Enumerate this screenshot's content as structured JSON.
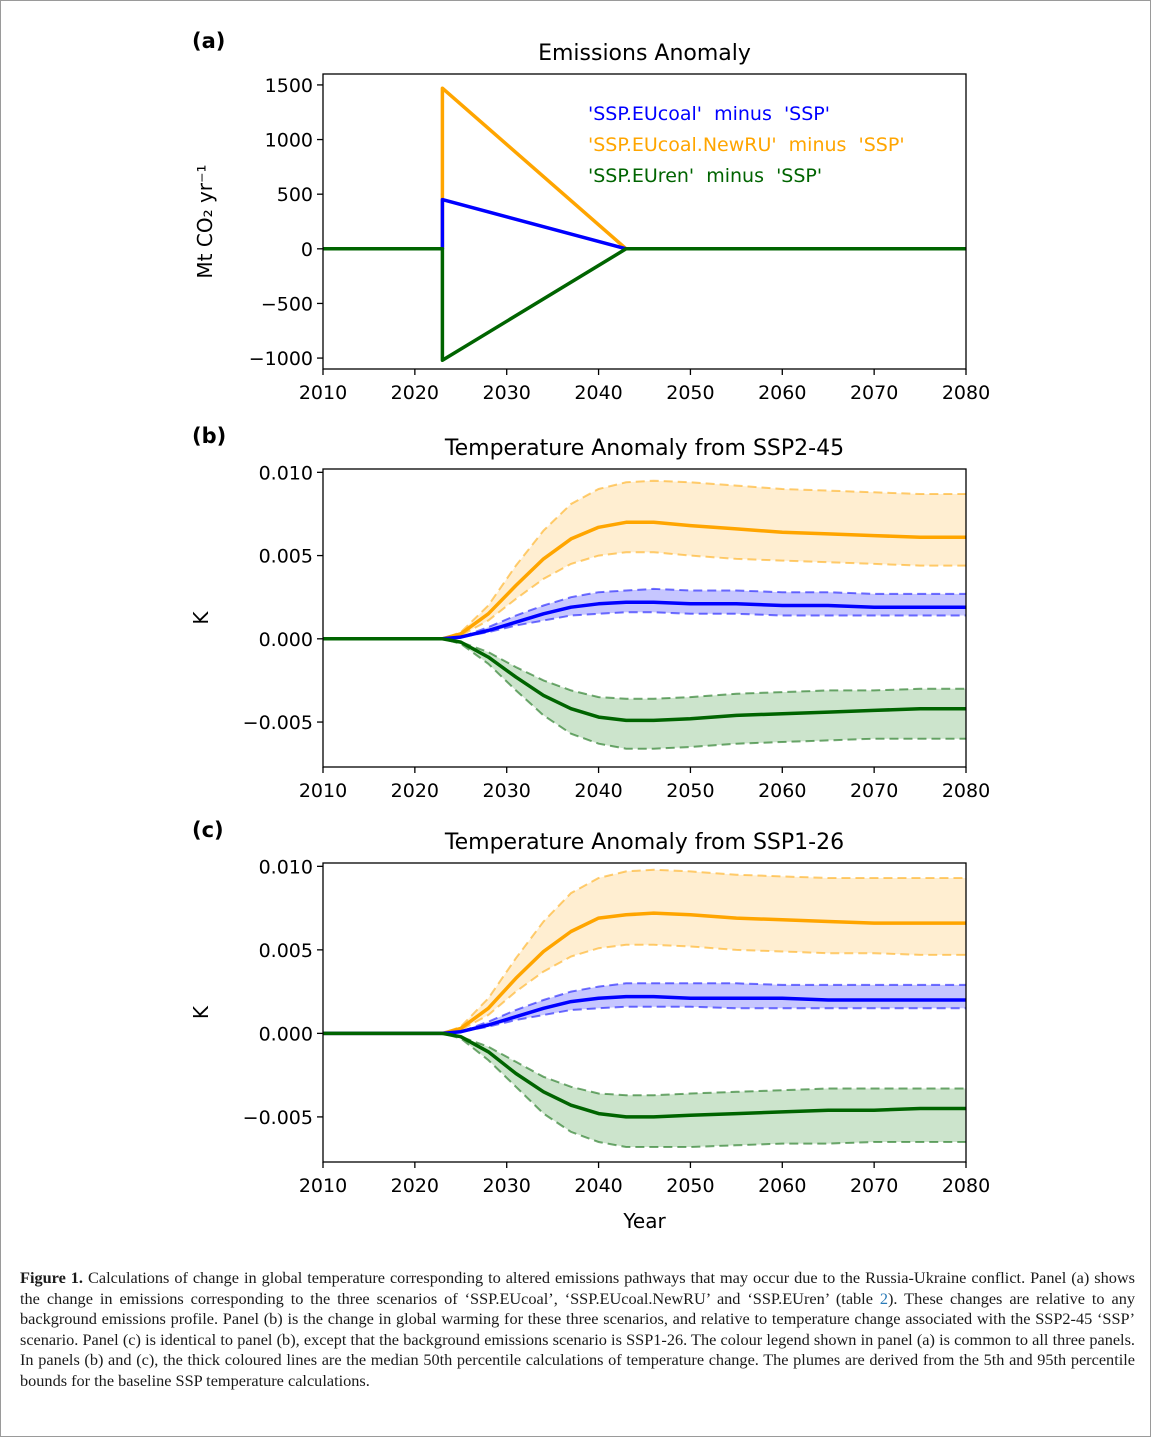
{
  "colors": {
    "eucoal": "#0000ff",
    "newru": "#ffa500",
    "euren": "#006400",
    "eucoal_fill": "#8080ff",
    "newru_fill": "#ffd99a",
    "euren_fill": "#8ec38e"
  },
  "chart_data": [
    {
      "type": "line",
      "panel_label": "(a)",
      "title": "Emissions Anomaly",
      "xlabel": "",
      "ylabel": "Mt CO₂ yr⁻¹",
      "xlim": [
        2010,
        2080
      ],
      "ylim": [
        -1100,
        1600
      ],
      "xticks": [
        2010,
        2020,
        2030,
        2040,
        2050,
        2060,
        2070,
        2080
      ],
      "yticks": [
        -1000,
        -500,
        0,
        500,
        1000,
        1500
      ],
      "ytick_labels": [
        "−1000",
        "−500",
        "0",
        "500",
        "1000",
        "1500"
      ],
      "legend": {
        "placement": "top-right",
        "entries": [
          {
            "key": "eucoal",
            "label": "'SSP.EUcoal'  minus  'SSP'"
          },
          {
            "key": "newru",
            "label": "'SSP.EUcoal.NewRU'  minus  'SSP'"
          },
          {
            "key": "euren",
            "label": "'SSP.EUren'  minus  'SSP'"
          }
        ]
      },
      "series": [
        {
          "key": "newru",
          "x": [
            2010,
            2023,
            2023,
            2043,
            2080
          ],
          "y": [
            0,
            0,
            1470,
            0,
            0
          ]
        },
        {
          "key": "eucoal",
          "x": [
            2010,
            2023,
            2023,
            2043,
            2080
          ],
          "y": [
            0,
            0,
            450,
            0,
            0
          ]
        },
        {
          "key": "euren",
          "x": [
            2010,
            2023,
            2023,
            2043,
            2080
          ],
          "y": [
            0,
            0,
            -1020,
            0,
            0
          ]
        }
      ]
    },
    {
      "type": "line",
      "panel_label": "(b)",
      "title": "Temperature Anomaly from SSP2-45",
      "xlabel": "",
      "ylabel": "K",
      "xlim": [
        2010,
        2080
      ],
      "ylim": [
        -0.0077,
        0.0102
      ],
      "xticks": [
        2010,
        2020,
        2030,
        2040,
        2050,
        2060,
        2070,
        2080
      ],
      "yticks": [
        -0.005,
        0.0,
        0.005,
        0.01
      ],
      "ytick_labels": [
        "−0.005",
        "0.000",
        "0.005",
        "0.010"
      ],
      "series": [
        {
          "key": "newru",
          "x": [
            2010,
            2023,
            2025,
            2028,
            2031,
            2034,
            2037,
            2040,
            2043,
            2046,
            2050,
            2055,
            2060,
            2065,
            2070,
            2075,
            2080
          ],
          "median": [
            0,
            0,
            0.0003,
            0.0015,
            0.0032,
            0.0048,
            0.006,
            0.0067,
            0.007,
            0.007,
            0.0068,
            0.0066,
            0.0064,
            0.0063,
            0.0062,
            0.0061,
            0.0061
          ],
          "low": [
            0,
            0,
            0.0002,
            0.0011,
            0.0024,
            0.0036,
            0.0045,
            0.005,
            0.0052,
            0.0052,
            0.005,
            0.0048,
            0.0047,
            0.0046,
            0.0045,
            0.0044,
            0.0044
          ],
          "high": [
            0,
            0,
            0.0004,
            0.002,
            0.0044,
            0.0065,
            0.0081,
            0.009,
            0.0094,
            0.0095,
            0.0094,
            0.0092,
            0.009,
            0.0089,
            0.0088,
            0.0087,
            0.0087
          ]
        },
        {
          "key": "eucoal",
          "x": [
            2010,
            2023,
            2025,
            2028,
            2031,
            2034,
            2037,
            2040,
            2043,
            2046,
            2050,
            2055,
            2060,
            2065,
            2070,
            2075,
            2080
          ],
          "median": [
            0,
            0,
            0.0001,
            0.0005,
            0.001,
            0.0015,
            0.0019,
            0.0021,
            0.0022,
            0.0022,
            0.0021,
            0.0021,
            0.002,
            0.002,
            0.0019,
            0.0019,
            0.0019
          ],
          "low": [
            0,
            0,
            0.0001,
            0.0004,
            0.0008,
            0.0011,
            0.0014,
            0.0015,
            0.0016,
            0.0016,
            0.0015,
            0.0015,
            0.0014,
            0.0014,
            0.0014,
            0.0014,
            0.0014
          ],
          "high": [
            0,
            0,
            0.0001,
            0.0007,
            0.0014,
            0.002,
            0.0025,
            0.0028,
            0.0029,
            0.003,
            0.0029,
            0.0029,
            0.0028,
            0.0028,
            0.0027,
            0.0027,
            0.0027
          ]
        },
        {
          "key": "euren",
          "x": [
            2010,
            2023,
            2025,
            2028,
            2031,
            2034,
            2037,
            2040,
            2043,
            2046,
            2050,
            2055,
            2060,
            2065,
            2070,
            2075,
            2080
          ],
          "median": [
            0,
            0,
            -0.0002,
            -0.0011,
            -0.0023,
            -0.0034,
            -0.0042,
            -0.0047,
            -0.0049,
            -0.0049,
            -0.0048,
            -0.0046,
            -0.0045,
            -0.0044,
            -0.0043,
            -0.0042,
            -0.0042
          ],
          "low": [
            0,
            0,
            -0.0003,
            -0.0015,
            -0.0031,
            -0.0046,
            -0.0057,
            -0.0063,
            -0.0066,
            -0.0066,
            -0.0065,
            -0.0063,
            -0.0062,
            -0.0061,
            -0.006,
            -0.006,
            -0.006
          ],
          "high": [
            0,
            0,
            -0.0002,
            -0.0008,
            -0.0017,
            -0.0025,
            -0.0031,
            -0.0035,
            -0.0036,
            -0.0036,
            -0.0035,
            -0.0033,
            -0.0032,
            -0.0031,
            -0.0031,
            -0.003,
            -0.003
          ]
        }
      ]
    },
    {
      "type": "line",
      "panel_label": "(c)",
      "title": "Temperature Anomaly from SSP1-26",
      "xlabel": "Year",
      "ylabel": "K",
      "xlim": [
        2010,
        2080
      ],
      "ylim": [
        -0.0077,
        0.0102
      ],
      "xticks": [
        2010,
        2020,
        2030,
        2040,
        2050,
        2060,
        2070,
        2080
      ],
      "yticks": [
        -0.005,
        0.0,
        0.005,
        0.01
      ],
      "ytick_labels": [
        "−0.005",
        "0.000",
        "0.005",
        "0.010"
      ],
      "series": [
        {
          "key": "newru",
          "x": [
            2010,
            2023,
            2025,
            2028,
            2031,
            2034,
            2037,
            2040,
            2043,
            2046,
            2050,
            2055,
            2060,
            2065,
            2070,
            2075,
            2080
          ],
          "median": [
            0,
            0,
            0.0003,
            0.0015,
            0.0033,
            0.0049,
            0.0061,
            0.0069,
            0.0071,
            0.0072,
            0.0071,
            0.0069,
            0.0068,
            0.0067,
            0.0066,
            0.0066,
            0.0066
          ],
          "low": [
            0,
            0,
            0.0002,
            0.0011,
            0.0025,
            0.0037,
            0.0046,
            0.0051,
            0.0053,
            0.0053,
            0.0052,
            0.005,
            0.0049,
            0.0048,
            0.0048,
            0.0047,
            0.0047
          ],
          "high": [
            0,
            0,
            0.0004,
            0.0021,
            0.0045,
            0.0067,
            0.0084,
            0.0093,
            0.0097,
            0.0098,
            0.0097,
            0.0095,
            0.0094,
            0.0093,
            0.0093,
            0.0093,
            0.0093
          ]
        },
        {
          "key": "eucoal",
          "x": [
            2010,
            2023,
            2025,
            2028,
            2031,
            2034,
            2037,
            2040,
            2043,
            2046,
            2050,
            2055,
            2060,
            2065,
            2070,
            2075,
            2080
          ],
          "median": [
            0,
            0,
            0.0001,
            0.0005,
            0.001,
            0.0015,
            0.0019,
            0.0021,
            0.0022,
            0.0022,
            0.0021,
            0.0021,
            0.0021,
            0.002,
            0.002,
            0.002,
            0.002
          ],
          "low": [
            0,
            0,
            0.0001,
            0.0004,
            0.0008,
            0.0011,
            0.0014,
            0.0015,
            0.0016,
            0.0016,
            0.0016,
            0.0015,
            0.0015,
            0.0015,
            0.0015,
            0.0015,
            0.0015
          ],
          "high": [
            0,
            0,
            0.0001,
            0.0007,
            0.0014,
            0.002,
            0.0025,
            0.0028,
            0.003,
            0.003,
            0.003,
            0.003,
            0.0029,
            0.0029,
            0.0029,
            0.0029,
            0.0029
          ]
        },
        {
          "key": "euren",
          "x": [
            2010,
            2023,
            2025,
            2028,
            2031,
            2034,
            2037,
            2040,
            2043,
            2046,
            2050,
            2055,
            2060,
            2065,
            2070,
            2075,
            2080
          ],
          "median": [
            0,
            0,
            -0.0002,
            -0.0011,
            -0.0024,
            -0.0035,
            -0.0043,
            -0.0048,
            -0.005,
            -0.005,
            -0.0049,
            -0.0048,
            -0.0047,
            -0.0046,
            -0.0046,
            -0.0045,
            -0.0045
          ],
          "low": [
            0,
            0,
            -0.0003,
            -0.0016,
            -0.0032,
            -0.0048,
            -0.0059,
            -0.0065,
            -0.0068,
            -0.0068,
            -0.0068,
            -0.0067,
            -0.0066,
            -0.0066,
            -0.0065,
            -0.0065,
            -0.0065
          ],
          "high": [
            0,
            0,
            -0.0002,
            -0.0008,
            -0.0017,
            -0.0026,
            -0.0032,
            -0.0036,
            -0.0037,
            -0.0037,
            -0.0036,
            -0.0035,
            -0.0034,
            -0.0033,
            -0.0033,
            -0.0033,
            -0.0033
          ]
        }
      ]
    }
  ],
  "caption": {
    "label": "Figure 1.",
    "text_1": " Calculations of change in global temperature corresponding to altered emissions pathways that may occur due to the Russia-Ukraine conflict. Panel (a) shows the change in emissions corresponding to the three scenarios of ‘SSP.EUcoal’, ‘SSP.EUcoal.NewRU’ and ‘SSP.EUren’ (table ",
    "table_ref": "2",
    "text_2": "). These changes are relative to any background emissions profile. Panel (b) is the change in global warming for these three scenarios, and relative to temperature change associated with the SSP2-45 ‘SSP’ scenario. Panel (c) is identical to panel (b), except that the background emissions scenario is SSP1-26. The colour legend shown in panel (a) is common to all three panels. In panels (b) and (c), the thick coloured lines are the median 50th percentile calculations of temperature change. The plumes are derived from the 5th and 95th percentile bounds for the baseline SSP temperature calculations."
  }
}
